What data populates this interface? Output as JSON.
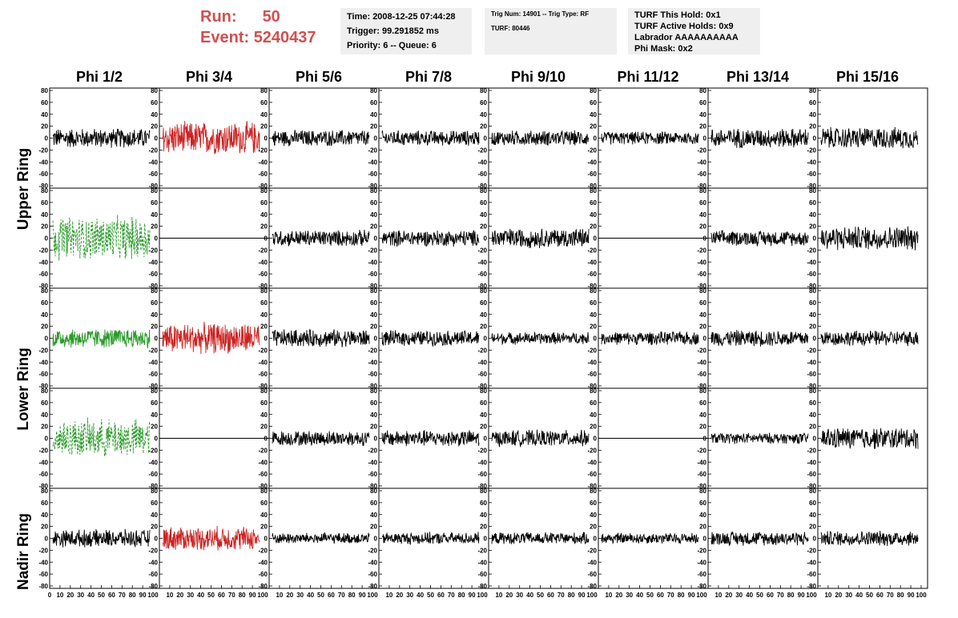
{
  "header": {
    "run_label": "Run:",
    "run_value": "50",
    "event_label": "Event:",
    "event_value": "5240437",
    "info1": [
      "Time: 2008-12-25 07:44:28",
      "Trigger: 99.291852 ms",
      "Priority: 6 -- Queue: 6"
    ],
    "info2": [
      "Trig Num: 14901 -- Trig Type: RF",
      "",
      "TURF: 80446"
    ],
    "info3": [
      "TURF This Hold: 0x1",
      "TURF Active Holds: 0x9",
      "Labrador AAAAAAAAAA",
      "Phi Mask: 0x2"
    ]
  },
  "columns": [
    "Phi 1/2",
    "Phi 3/4",
    "Phi 5/6",
    "Phi 7/8",
    "Phi 9/10",
    "Phi 11/12",
    "Phi 13/14",
    "Phi 15/16"
  ],
  "rings": [
    "Upper Ring",
    "Lower Ring",
    "Nadir Ring"
  ],
  "axes": {
    "y_ticks": [
      "80",
      "60",
      "40",
      "20",
      "0",
      "-20",
      "-40",
      "-60",
      "-80"
    ],
    "x_ticks": [
      "0",
      "10",
      "20",
      "30",
      "40",
      "50",
      "60",
      "70",
      "80",
      "90",
      "100"
    ],
    "ylim": [
      -80,
      80
    ],
    "xlim": [
      0,
      100
    ]
  },
  "colors": {
    "run_text": "#d05050",
    "trace_default": "#000000",
    "trace_red": "#cc2222",
    "trace_green": "#2a9a2a",
    "info_bg": "#efefef"
  },
  "chart_data": {
    "type": "line",
    "panel_rows": 5,
    "panel_cols": 8,
    "panels_note_colors": [
      [
        "black",
        "red",
        "black",
        "black",
        "black",
        "black",
        "black",
        "black"
      ],
      [
        "green-dashed",
        "flat",
        "black",
        "black",
        "black",
        "flat",
        "black",
        "black"
      ],
      [
        "green",
        "red",
        "black",
        "black",
        "black",
        "black",
        "black",
        "black"
      ],
      [
        "green-dashed",
        "flat",
        "black",
        "black",
        "black",
        "flat",
        "black",
        "black"
      ],
      [
        "black",
        "red",
        "black",
        "black",
        "black",
        "black",
        "black",
        "black"
      ]
    ],
    "panel_amplitude": [
      [
        18,
        30,
        15,
        14,
        14,
        12,
        18,
        20
      ],
      [
        40,
        0,
        15,
        15,
        18,
        0,
        14,
        22
      ],
      [
        18,
        28,
        16,
        14,
        11,
        12,
        15,
        14
      ],
      [
        35,
        0,
        14,
        15,
        15,
        0,
        10,
        20
      ],
      [
        16,
        22,
        10,
        11,
        11,
        10,
        13,
        14
      ]
    ]
  }
}
